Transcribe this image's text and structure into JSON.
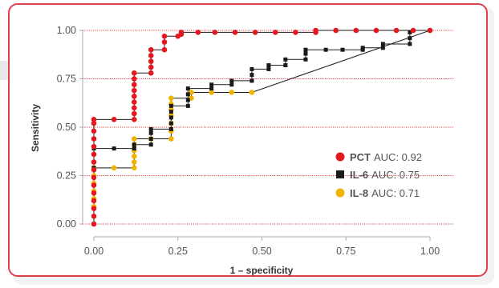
{
  "chart_data": {
    "type": "line",
    "xlabel": "1 – specificity",
    "ylabel": "Sensitivity",
    "xlim": [
      0,
      1
    ],
    "ylim": [
      0,
      1
    ],
    "x_ticks": [
      "0.00",
      "0.25",
      "0.50",
      "0.75",
      "1.00"
    ],
    "y_ticks": [
      "0.00",
      "0.25",
      "0.50",
      "0.75",
      "1.00"
    ],
    "grid": "horizontal dotted red",
    "legend_position": "bottom-right",
    "series": [
      {
        "name": "PCT",
        "auc_label": "AUC: 0.92",
        "color": "#e3171f",
        "marker": "circle",
        "points": [
          [
            0.0,
            0.0
          ],
          [
            0.0,
            0.04
          ],
          [
            0.0,
            0.08
          ],
          [
            0.0,
            0.12
          ],
          [
            0.0,
            0.16
          ],
          [
            0.0,
            0.2
          ],
          [
            0.0,
            0.24
          ],
          [
            0.0,
            0.28
          ],
          [
            0.0,
            0.32
          ],
          [
            0.0,
            0.36
          ],
          [
            0.0,
            0.4
          ],
          [
            0.0,
            0.44
          ],
          [
            0.0,
            0.48
          ],
          [
            0.0,
            0.52
          ],
          [
            0.0,
            0.54
          ],
          [
            0.06,
            0.54
          ],
          [
            0.12,
            0.54
          ],
          [
            0.12,
            0.57
          ],
          [
            0.12,
            0.6
          ],
          [
            0.12,
            0.63
          ],
          [
            0.12,
            0.66
          ],
          [
            0.12,
            0.69
          ],
          [
            0.12,
            0.72
          ],
          [
            0.12,
            0.75
          ],
          [
            0.12,
            0.78
          ],
          [
            0.17,
            0.78
          ],
          [
            0.17,
            0.81
          ],
          [
            0.17,
            0.84
          ],
          [
            0.17,
            0.87
          ],
          [
            0.17,
            0.9
          ],
          [
            0.21,
            0.9
          ],
          [
            0.21,
            0.94
          ],
          [
            0.21,
            0.97
          ],
          [
            0.25,
            0.97
          ],
          [
            0.26,
            0.98
          ],
          [
            0.26,
            0.99
          ],
          [
            0.31,
            0.99
          ],
          [
            0.36,
            0.99
          ],
          [
            0.42,
            0.99
          ],
          [
            0.48,
            0.99
          ],
          [
            0.54,
            0.99
          ],
          [
            0.6,
            0.99
          ],
          [
            0.66,
            0.99
          ],
          [
            0.66,
            1.0
          ],
          [
            0.72,
            1.0
          ],
          [
            0.78,
            1.0
          ],
          [
            0.84,
            1.0
          ],
          [
            0.9,
            1.0
          ],
          [
            0.95,
            1.0
          ],
          [
            1.0,
            1.0
          ]
        ]
      },
      {
        "name": "IL-6",
        "auc_label": "AUC: 0.75",
        "color": "#1a1a1a",
        "marker": "square",
        "points": [
          [
            0.0,
            0.0
          ],
          [
            0.0,
            0.29
          ],
          [
            0.0,
            0.39
          ],
          [
            0.06,
            0.39
          ],
          [
            0.12,
            0.39
          ],
          [
            0.12,
            0.41
          ],
          [
            0.17,
            0.41
          ],
          [
            0.17,
            0.44
          ],
          [
            0.17,
            0.47
          ],
          [
            0.17,
            0.49
          ],
          [
            0.23,
            0.49
          ],
          [
            0.23,
            0.52
          ],
          [
            0.23,
            0.55
          ],
          [
            0.23,
            0.58
          ],
          [
            0.23,
            0.61
          ],
          [
            0.28,
            0.61
          ],
          [
            0.28,
            0.64
          ],
          [
            0.28,
            0.67
          ],
          [
            0.28,
            0.7
          ],
          [
            0.35,
            0.7
          ],
          [
            0.35,
            0.72
          ],
          [
            0.41,
            0.72
          ],
          [
            0.41,
            0.74
          ],
          [
            0.47,
            0.74
          ],
          [
            0.47,
            0.77
          ],
          [
            0.47,
            0.8
          ],
          [
            0.52,
            0.8
          ],
          [
            0.52,
            0.82
          ],
          [
            0.57,
            0.82
          ],
          [
            0.57,
            0.85
          ],
          [
            0.63,
            0.85
          ],
          [
            0.63,
            0.88
          ],
          [
            0.63,
            0.9
          ],
          [
            0.69,
            0.9
          ],
          [
            0.74,
            0.9
          ],
          [
            0.8,
            0.9
          ],
          [
            0.8,
            0.91
          ],
          [
            0.86,
            0.91
          ],
          [
            0.86,
            0.93
          ],
          [
            0.94,
            0.93
          ],
          [
            0.94,
            0.96
          ],
          [
            0.94,
            0.99
          ]
        ]
      },
      {
        "name": "IL-8",
        "auc_label": "AUC: 0.71",
        "color": "#f0b400",
        "marker": "circle",
        "points": [
          [
            0.0,
            0.09
          ],
          [
            0.0,
            0.13
          ],
          [
            0.0,
            0.17
          ],
          [
            0.0,
            0.21
          ],
          [
            0.0,
            0.25
          ],
          [
            0.0,
            0.29
          ],
          [
            0.06,
            0.29
          ],
          [
            0.12,
            0.29
          ],
          [
            0.12,
            0.32
          ],
          [
            0.12,
            0.35
          ],
          [
            0.12,
            0.38
          ],
          [
            0.12,
            0.41
          ],
          [
            0.12,
            0.44
          ],
          [
            0.17,
            0.44
          ],
          [
            0.23,
            0.44
          ],
          [
            0.23,
            0.48
          ],
          [
            0.23,
            0.52
          ],
          [
            0.23,
            0.56
          ],
          [
            0.23,
            0.59
          ],
          [
            0.23,
            0.62
          ],
          [
            0.23,
            0.65
          ],
          [
            0.29,
            0.65
          ],
          [
            0.29,
            0.68
          ],
          [
            0.35,
            0.68
          ],
          [
            0.41,
            0.68
          ],
          [
            0.47,
            0.68
          ],
          [
            1.0,
            1.0
          ]
        ]
      }
    ]
  }
}
